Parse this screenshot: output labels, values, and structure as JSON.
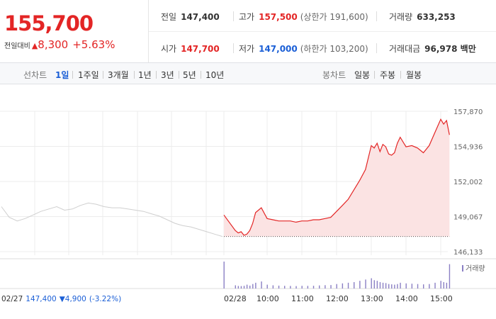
{
  "quote": {
    "price": "155,700",
    "change_label": "전일대비",
    "change_arrow": "▲",
    "change_value": "8,300",
    "change_rate": "+5.63%"
  },
  "stats": {
    "prev_close": {
      "label": "전일",
      "value": "147,400"
    },
    "high": {
      "label": "고가",
      "value": "157,500",
      "sub": "(상한가 191,600)"
    },
    "volume": {
      "label": "거래량",
      "value": "633,253"
    },
    "open": {
      "label": "시가",
      "value": "147,700"
    },
    "low": {
      "label": "저가",
      "value": "147,000",
      "sub": "(하한가 103,200)"
    },
    "amount": {
      "label": "거래대금",
      "value": "96,978 백만"
    }
  },
  "period_tabs": {
    "heading": "선차트",
    "items": [
      "1일",
      "1주일",
      "3개월",
      "1년",
      "3년",
      "5년",
      "10년"
    ],
    "active": "1일"
  },
  "candle_tabs": {
    "heading": "봉차트",
    "items": [
      "일봉",
      "주봉",
      "월봉"
    ]
  },
  "colors": {
    "up": "#e32525",
    "down": "#1b5fd6",
    "prev_day": "#cccccc",
    "volume": "#8a7fc4"
  },
  "chart_data": {
    "type": "line",
    "y_ticks": [
      "157,870",
      "154,936",
      "152,002",
      "149,067",
      "146,133"
    ],
    "ylim": [
      146133,
      157870
    ],
    "x_labels": [
      "02/28",
      "10:00",
      "11:00",
      "12:00",
      "13:00",
      "14:00",
      "15:00"
    ],
    "previous_day_series": {
      "values": [
        149900,
        149000,
        148700,
        148900,
        149200,
        149500,
        149700,
        149900,
        149600,
        149700,
        150000,
        150200,
        150100,
        149900,
        149800,
        149800,
        149700,
        149600,
        149500,
        149300,
        149100,
        148800,
        148500,
        148300,
        148200,
        148000,
        147800,
        147600,
        147400
      ]
    },
    "today_series": {
      "times": [
        "09:00",
        "09:05",
        "09:10",
        "09:15",
        "09:20",
        "09:25",
        "09:30",
        "09:35",
        "09:40",
        "09:50",
        "10:00",
        "10:10",
        "10:20",
        "10:30",
        "10:40",
        "10:50",
        "11:00",
        "11:10",
        "11:20",
        "11:30",
        "11:40",
        "11:50",
        "12:00",
        "12:10",
        "12:20",
        "12:30",
        "12:40",
        "12:50",
        "13:00",
        "13:05",
        "13:10",
        "13:15",
        "13:20",
        "13:25",
        "13:30",
        "13:35",
        "13:40",
        "13:45",
        "13:50",
        "14:00",
        "14:10",
        "14:20",
        "14:30",
        "14:40",
        "14:50",
        "15:00",
        "15:05",
        "15:10",
        "15:15"
      ],
      "values": [
        149200,
        147900,
        147700,
        147800,
        147500,
        147600,
        147900,
        148500,
        149400,
        149800,
        148900,
        148800,
        148700,
        148700,
        148700,
        148600,
        148700,
        148700,
        148800,
        148800,
        148900,
        149000,
        149500,
        150000,
        150500,
        151300,
        152100,
        153000,
        155000,
        154800,
        155200,
        154500,
        155100,
        154900,
        154300,
        154200,
        154400,
        155200,
        155700,
        154900,
        155000,
        154800,
        154400,
        155000,
        156100,
        157200,
        156800,
        157100,
        155900
      ]
    },
    "prev_close_line": 147400,
    "volume_label": "거래량",
    "volume_values": [
      4200,
      500,
      400,
      380,
      420,
      600,
      450,
      700,
      900,
      1100,
      600,
      500,
      450,
      420,
      400,
      380,
      420,
      410,
      430,
      480,
      520,
      540,
      700,
      800,
      900,
      1000,
      1200,
      1400,
      1600,
      1300,
      1200,
      1000,
      900,
      850,
      700,
      650,
      600,
      700,
      900,
      800,
      750,
      700,
      650,
      700,
      900,
      1200,
      1000,
      900,
      3800
    ],
    "footer": {
      "date": "02/27",
      "price": "147,400",
      "arrow": "▼",
      "change": "4,900",
      "rate": "(-3.22%)"
    }
  }
}
